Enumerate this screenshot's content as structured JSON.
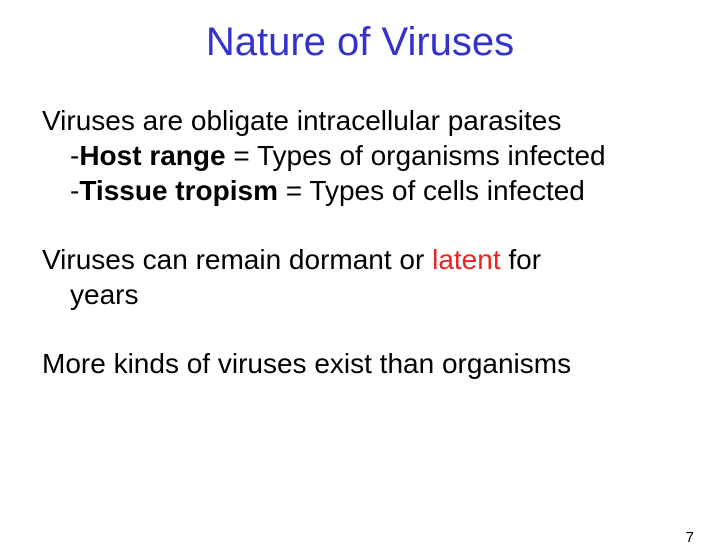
{
  "title": "Nature of Viruses",
  "para1": {
    "line1": "Viruses are obligate intracellular parasites",
    "line2_pre": "-",
    "line2_bold": "Host range",
    "line2_post": " = Types of organisms infected",
    "line3_pre": "-",
    "line3_bold": "Tissue tropism",
    "line3_post": " = Types of cells infected"
  },
  "para2": {
    "pre": "Viruses can remain dormant or ",
    "highlight": "latent",
    "post": " for",
    "line2": "years"
  },
  "para3": "More kinds of viruses exist than organisms",
  "page_number": "7",
  "colors": {
    "title": "#3333cc",
    "text": "#000000",
    "highlight": "#ee2222",
    "background": "#ffffff"
  },
  "fonts": {
    "title_size": 40,
    "body_size": 28,
    "pagenum_size": 15,
    "family": "Arial"
  }
}
